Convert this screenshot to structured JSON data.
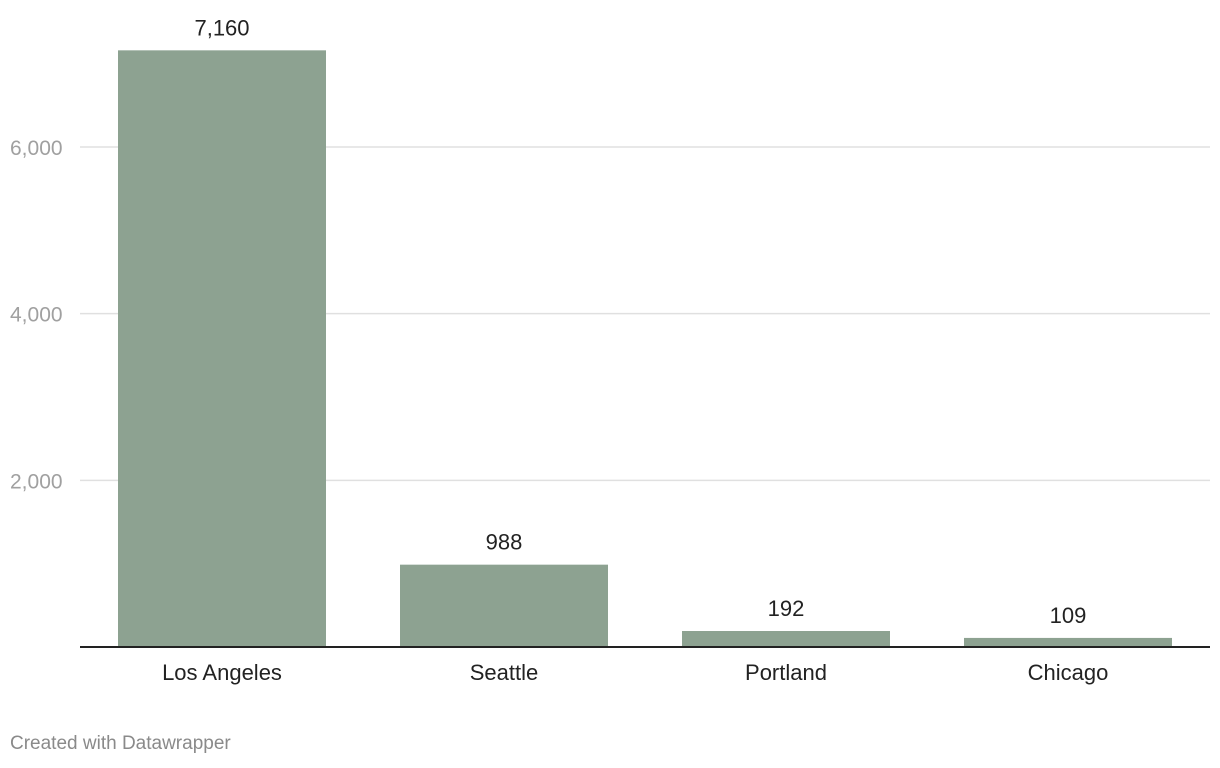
{
  "chart_data": {
    "type": "bar",
    "categories": [
      "Los Angeles",
      "Seattle",
      "Portland",
      "Chicago"
    ],
    "values": [
      7160,
      988,
      192,
      109
    ],
    "value_labels": [
      "7,160",
      "988",
      "192",
      "109"
    ],
    "title": "",
    "xlabel": "",
    "ylabel": "",
    "ylim": [
      0,
      7200
    ],
    "y_ticks": [
      2000,
      4000,
      6000
    ],
    "y_tick_labels": [
      "2,000",
      "4,000",
      "6,000"
    ],
    "grid": true,
    "bar_color": "#8da291",
    "grid_color": "#e0e0e0",
    "baseline_color": "#222222"
  },
  "footer": {
    "credit": "Created with Datawrapper"
  }
}
